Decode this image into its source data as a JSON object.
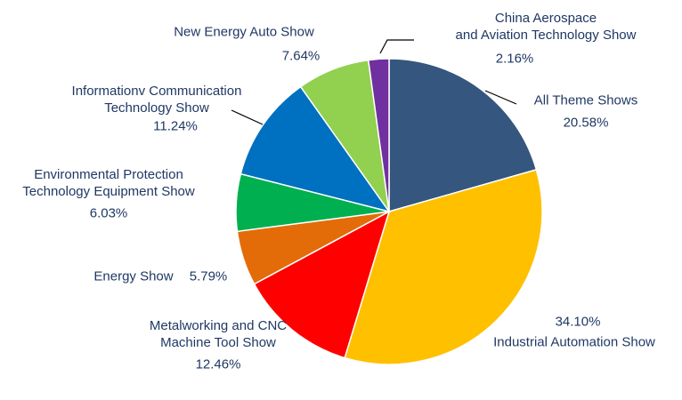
{
  "chart_data": {
    "type": "pie",
    "categories": [
      "All Theme Shows",
      "Industrial Automation Show",
      "Metalworking and CNC\nMachine Tool Show",
      "Energy Show",
      "Environmental Protection\nTechnology Equipment Show",
      "Informationv Communication\nTechnology Show",
      "New Energy Auto Show",
      "China Aerospace\nand Aviation Technology Show"
    ],
    "values": [
      20.58,
      34.1,
      12.46,
      5.79,
      6.03,
      11.24,
      7.64,
      2.16
    ],
    "value_labels": [
      "20.58%",
      "34.10%",
      "12.46%",
      "5.79%",
      "6.03%",
      "11.24%",
      "7.64%",
      "2.16%"
    ],
    "colors": [
      "#34567f",
      "#ffc000",
      "#ff0000",
      "#e36c09",
      "#00b050",
      "#0070c0",
      "#92d050",
      "#7030a0"
    ]
  }
}
